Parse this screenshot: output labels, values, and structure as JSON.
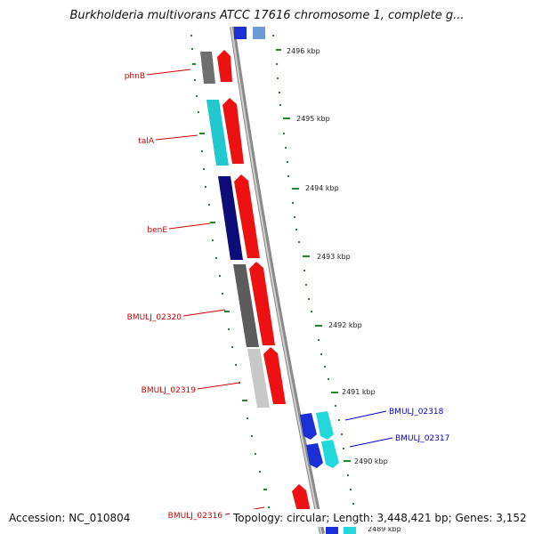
{
  "title": "Burkholderia multivorans ATCC 17616 chromosome 1, complete g...",
  "footer": {
    "accession": "Accession: NC_010804",
    "summary": "Topology: circular; Length: 3,448,421 bp; Genes: 3,152"
  },
  "ticks": [
    "2496 kbp",
    "2495 kbp",
    "2494 kbp",
    "2493 kbp",
    "2492 kbp",
    "2491 kbp",
    "2490 kbp",
    "2489 kbp"
  ],
  "gene_labels_left": [
    "phnB",
    "talA",
    "benE",
    "BMULJ_02320",
    "BMULJ_02319",
    "BMULJ_02316"
  ],
  "gene_labels_right": [
    "BMULJ_02318",
    "BMULJ_02317"
  ],
  "colors": {
    "left_label": "#cc0000",
    "right_label": "#0000cc",
    "tick": "#228822",
    "backbone": "#777777"
  }
}
